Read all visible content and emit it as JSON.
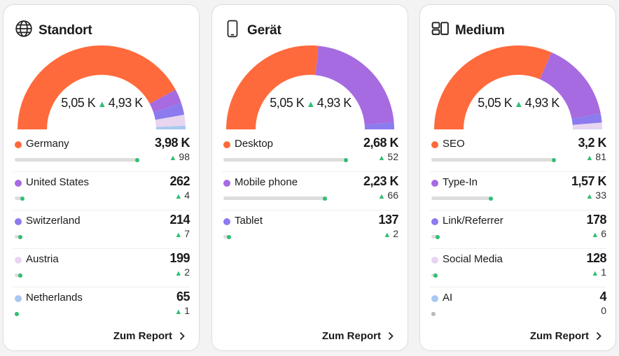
{
  "colors": {
    "orange": "#ff6a3c",
    "purple": "#a66be0",
    "violet": "#8b7bee",
    "pink": "#e8d5f0",
    "blue": "#a8c8f0",
    "up": "#2fbf71"
  },
  "cards": [
    {
      "title": "Standort",
      "icon": "globe-icon",
      "total": "5,05 K",
      "compare": "4,93 K",
      "footer": "Zum Report",
      "items": [
        {
          "label": "Germany",
          "value": "3,98 K",
          "num": 3980,
          "delta": "98",
          "up": true,
          "color": "#ff6a3c"
        },
        {
          "label": "United States",
          "value": "262",
          "num": 262,
          "delta": "4",
          "up": true,
          "color": "#a66be0"
        },
        {
          "label": "Switzerland",
          "value": "214",
          "num": 214,
          "delta": "7",
          "up": true,
          "color": "#8b7bee"
        },
        {
          "label": "Austria",
          "value": "199",
          "num": 199,
          "delta": "2",
          "up": true,
          "color": "#e8d5f0"
        },
        {
          "label": "Netherlands",
          "value": "65",
          "num": 65,
          "delta": "1",
          "up": true,
          "color": "#a8c8f0"
        }
      ]
    },
    {
      "title": "Gerät",
      "icon": "smartphone-icon",
      "total": "5,05 K",
      "compare": "4,93 K",
      "footer": "Zum Report",
      "items": [
        {
          "label": "Desktop",
          "value": "2,68 K",
          "num": 2680,
          "delta": "52",
          "up": true,
          "color": "#ff6a3c"
        },
        {
          "label": "Mobile phone",
          "value": "2,23 K",
          "num": 2230,
          "delta": "66",
          "up": true,
          "color": "#a66be0"
        },
        {
          "label": "Tablet",
          "value": "137",
          "num": 137,
          "delta": "2",
          "up": true,
          "color": "#8b7bee"
        }
      ]
    },
    {
      "title": "Medium",
      "icon": "layout-icon",
      "total": "5,05 K",
      "compare": "4,93 K",
      "footer": "Zum Report",
      "items": [
        {
          "label": "SEO",
          "value": "3,2 K",
          "num": 3200,
          "delta": "81",
          "up": true,
          "color": "#ff6a3c"
        },
        {
          "label": "Type-In",
          "value": "1,57 K",
          "num": 1570,
          "delta": "33",
          "up": true,
          "color": "#a66be0"
        },
        {
          "label": "Link/Referrer",
          "value": "178",
          "num": 178,
          "delta": "6",
          "up": true,
          "color": "#8b7bee"
        },
        {
          "label": "Social Media",
          "value": "128",
          "num": 128,
          "delta": "1",
          "up": true,
          "color": "#e8d5f0"
        },
        {
          "label": "AI",
          "value": "4",
          "num": 4,
          "delta": "0",
          "up": false,
          "color": "#a8c8f0"
        }
      ]
    }
  ]
}
